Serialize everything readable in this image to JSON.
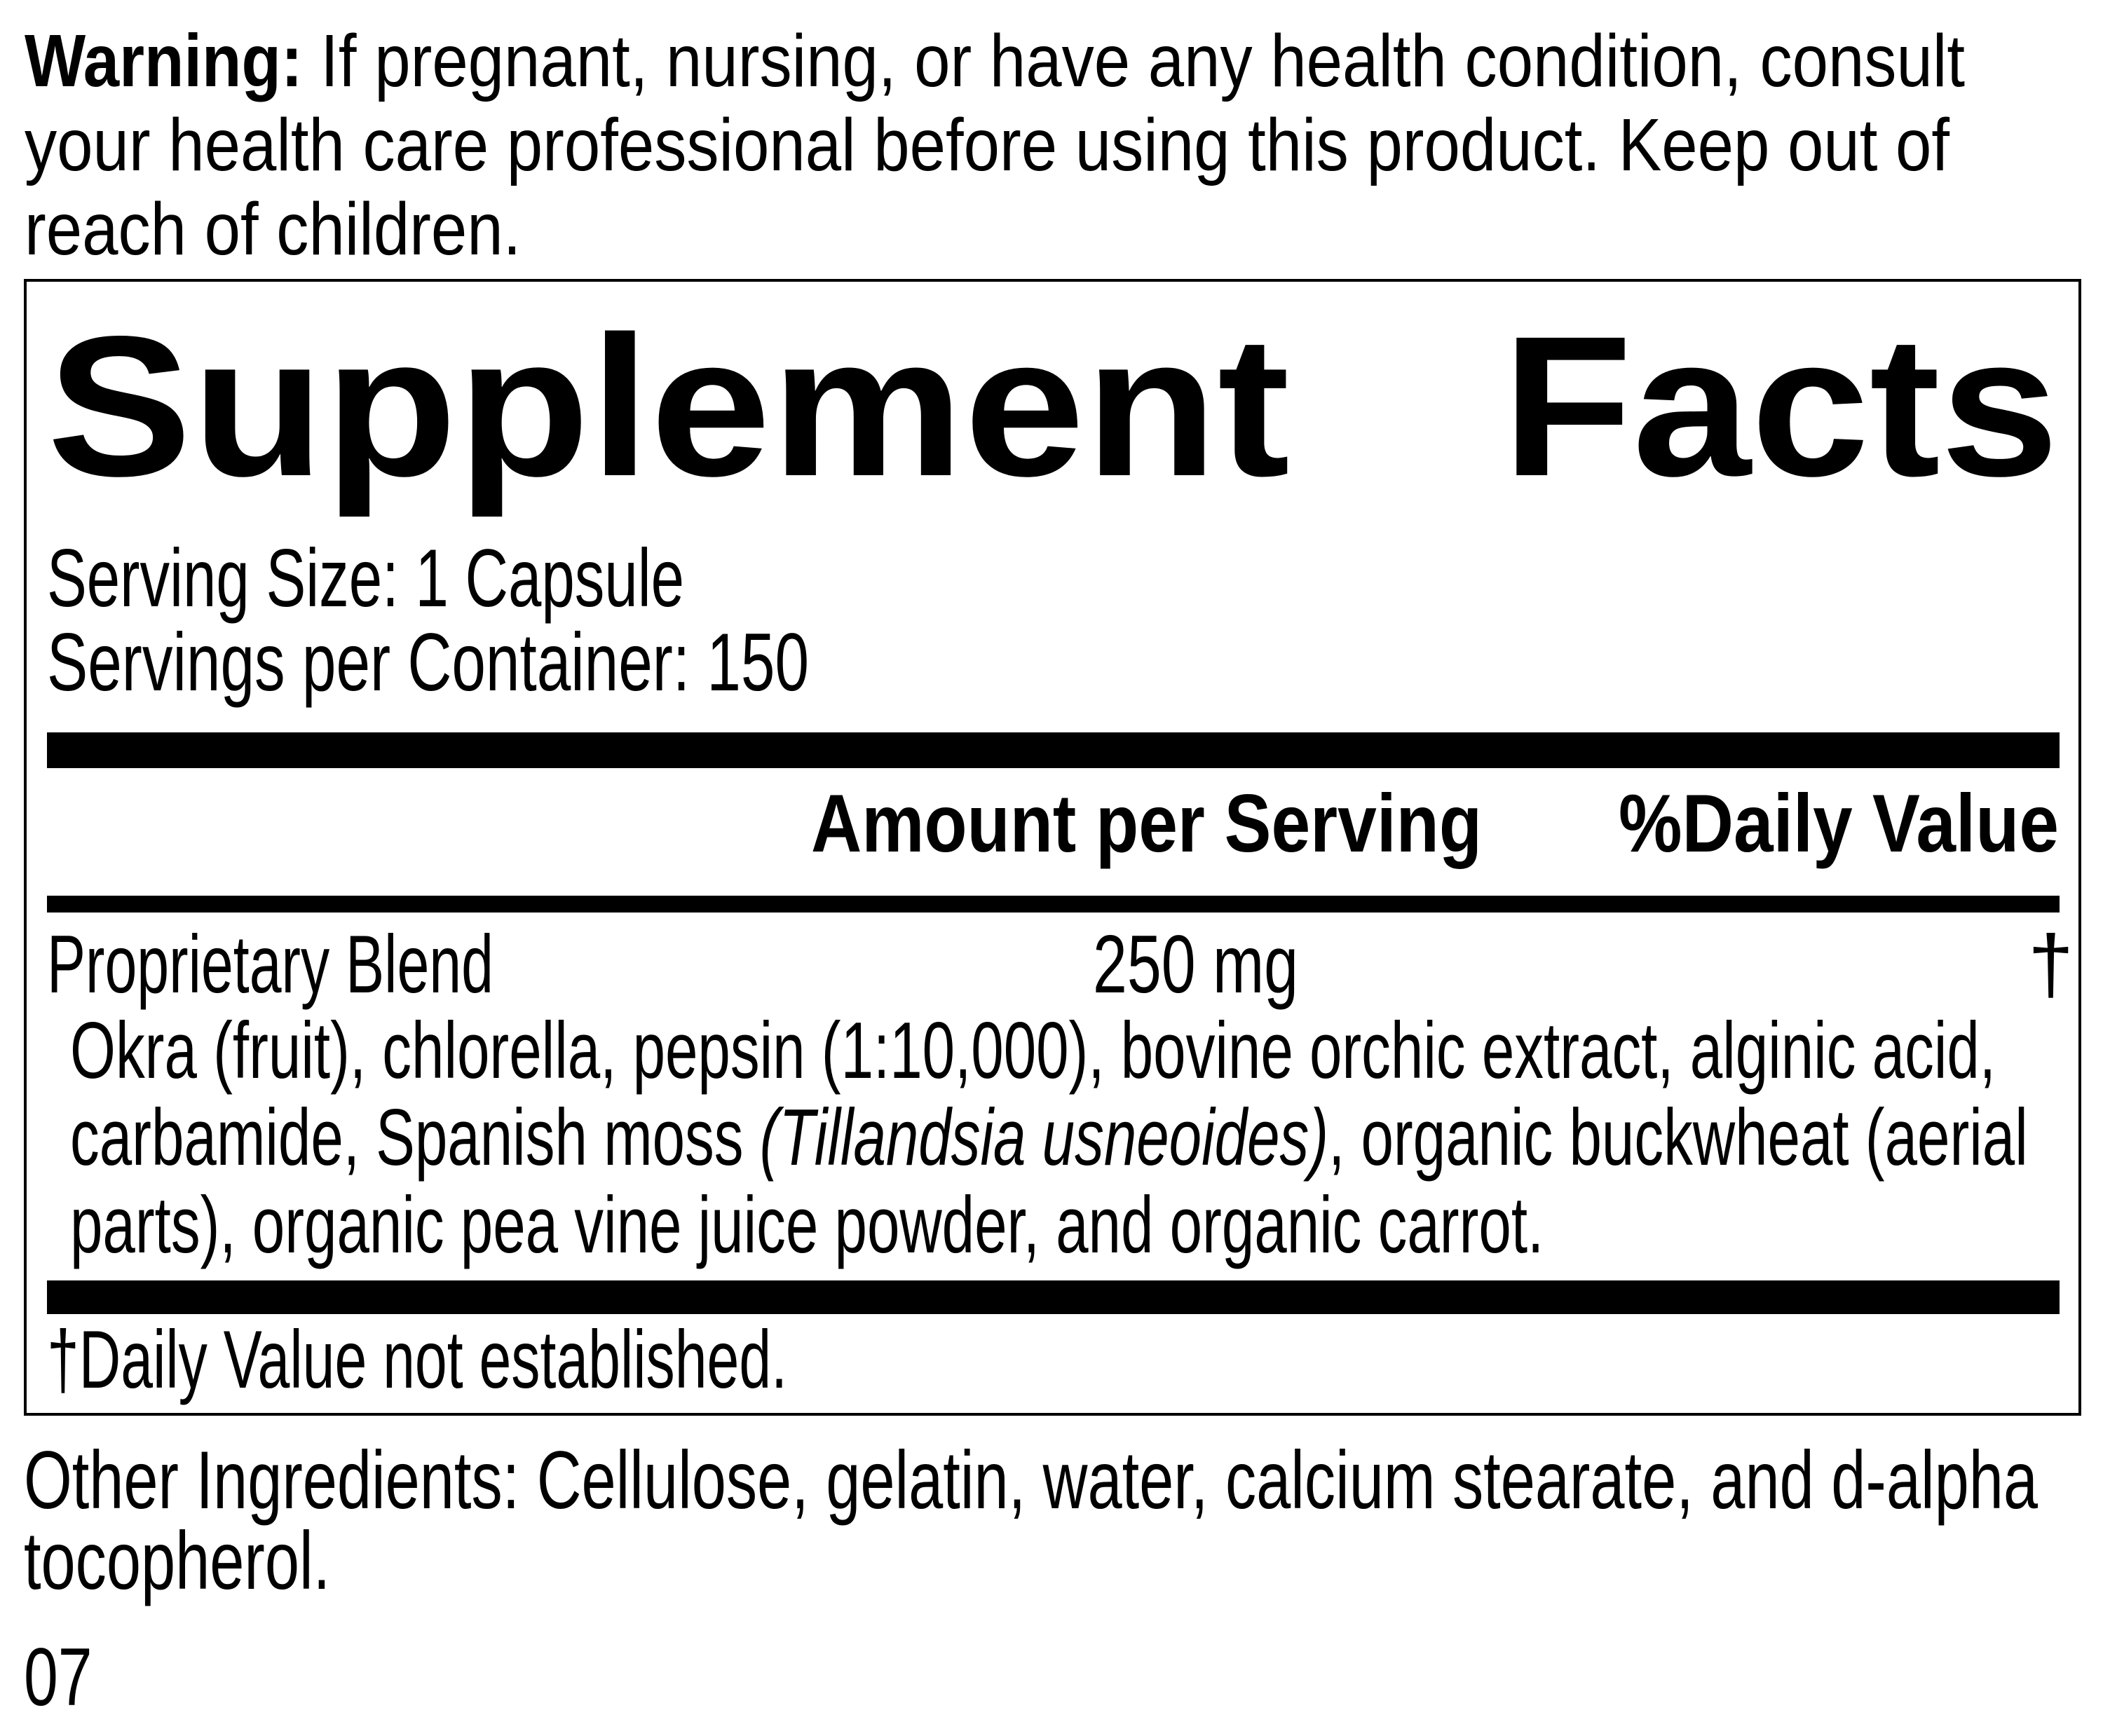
{
  "warning": {
    "label": "Warning:",
    "lines": [
      " If pregnant, nursing, or have any health condition, consult",
      "your health care professional before using this product. Keep out of",
      "reach of children."
    ]
  },
  "facts": {
    "title_word1": "Supplement",
    "title_word2": "Facts",
    "serving_size": "Serving Size: 1 Capsule",
    "servings_per_container": "Servings per Container: 150",
    "header_amount": "Amount per Serving",
    "header_daily_value": "%Daily Value",
    "rows": [
      {
        "name": "Proprietary Blend",
        "amount": "250 mg",
        "daily_value": "†"
      }
    ],
    "blend_ingredients": {
      "line1": "Okra (fruit), chlorella, pepsin (1:10,000), bovine orchic extract, alginic acid,",
      "line2_pre": "carbamide, Spanish moss ",
      "line2_italic": "(Tillandsia usneoides)",
      "line2_post": ", organic buckwheat (aerial",
      "line3": "parts), organic pea vine juice powder, and organic carrot."
    },
    "footnote": "†Daily Value not established."
  },
  "other_ingredients": {
    "lines": [
      "Other Ingredients: Cellulose, gelatin, water, calcium stearate, and d-alpha",
      "tocopherol."
    ]
  },
  "code": "07",
  "colors": {
    "text": "#000000",
    "background": "#ffffff"
  }
}
